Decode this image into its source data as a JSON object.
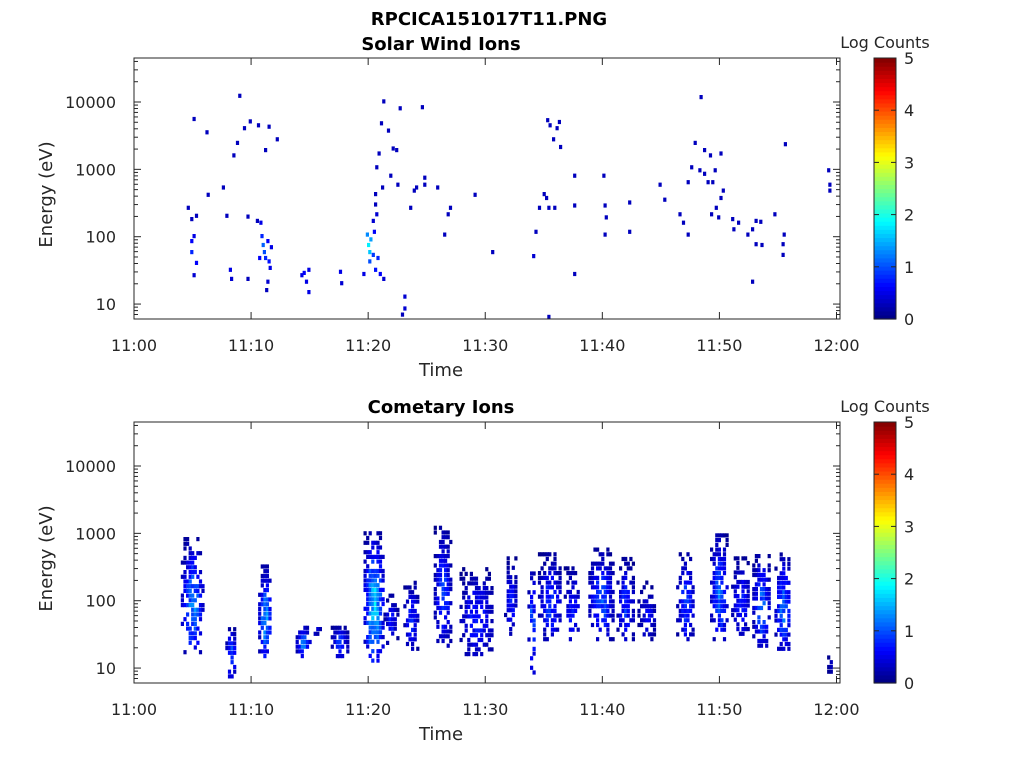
{
  "figure": {
    "title": "RPCICA151017T11.PNG"
  },
  "chart_data": [
    {
      "type": "heatmap",
      "title": "Solar Wind Ions",
      "xlabel": "Time",
      "ylabel": "Energy (eV)",
      "xticks": [
        "11:00",
        "11:10",
        "11:20",
        "11:30",
        "11:40",
        "11:50",
        "12:00"
      ],
      "xlim_minutes": [
        0,
        60.3
      ],
      "yscale": "log",
      "ylim": [
        6,
        45000
      ],
      "yticks": [
        "10",
        "100",
        "1000",
        "10000"
      ],
      "colorbar": {
        "label": "Log Counts",
        "ticks": [
          "0",
          "1",
          "2",
          "3",
          "4",
          "5"
        ],
        "range": [
          0,
          5
        ],
        "colormap": "jet"
      },
      "cells": [
        [
          4.5,
          250,
          0.3
        ],
        [
          4.8,
          170,
          0.3
        ],
        [
          5.0,
          5200,
          0.3
        ],
        [
          5.2,
          190,
          0.3
        ],
        [
          6.1,
          3300,
          0.3
        ],
        [
          6.2,
          390,
          0.3
        ],
        [
          7.5,
          500,
          0.3
        ],
        [
          7.8,
          190,
          0.3
        ],
        [
          8.4,
          1500,
          0.3
        ],
        [
          8.7,
          2300,
          0.3
        ],
        [
          8.9,
          11500,
          0.3
        ],
        [
          9.3,
          3800,
          0.3
        ],
        [
          9.8,
          4800,
          0.3
        ],
        [
          10.5,
          4200,
          0.3
        ],
        [
          11.1,
          1800,
          0.3
        ],
        [
          11.4,
          4000,
          0.3
        ],
        [
          12.1,
          2600,
          0.3
        ],
        [
          9.6,
          185,
          0.3
        ],
        [
          10.4,
          160,
          0.3
        ],
        [
          4.8,
          80,
          0.6
        ],
        [
          4.8,
          55,
          0.8
        ],
        [
          5.0,
          95,
          0.5
        ],
        [
          5.2,
          38,
          0.6
        ],
        [
          5.0,
          25,
          0.4
        ],
        [
          8.1,
          30,
          0.5
        ],
        [
          8.2,
          22,
          0.4
        ],
        [
          9.6,
          22,
          0.3
        ],
        [
          10.7,
          150,
          0.5
        ],
        [
          10.8,
          95,
          0.8
        ],
        [
          10.9,
          70,
          1.1
        ],
        [
          11.0,
          55,
          1.0
        ],
        [
          11.1,
          45,
          0.8
        ],
        [
          11.3,
          80,
          0.6
        ],
        [
          11.4,
          40,
          0.7
        ],
        [
          11.5,
          32,
          0.5
        ],
        [
          11.3,
          20,
          0.4
        ],
        [
          11.2,
          15,
          0.3
        ],
        [
          11.6,
          65,
          0.5
        ],
        [
          10.6,
          45,
          0.6
        ],
        [
          14.2,
          25,
          0.5
        ],
        [
          14.4,
          27,
          0.6
        ],
        [
          14.6,
          20,
          0.5
        ],
        [
          14.8,
          14,
          0.5
        ],
        [
          14.8,
          30,
          0.5
        ],
        [
          17.5,
          28,
          0.5
        ],
        [
          17.6,
          19,
          0.4
        ],
        [
          19.5,
          26,
          0.5
        ],
        [
          19.8,
          100,
          1.3
        ],
        [
          19.9,
          70,
          1.8
        ],
        [
          20.0,
          55,
          1.6
        ],
        [
          20.1,
          85,
          1.4
        ],
        [
          20.0,
          40,
          1.0
        ],
        [
          20.3,
          50,
          0.9
        ],
        [
          20.5,
          30,
          0.7
        ],
        [
          20.7,
          45,
          0.8
        ],
        [
          20.9,
          26,
          0.6
        ],
        [
          21.2,
          22,
          0.4
        ],
        [
          20.4,
          110,
          0.6
        ],
        [
          20.6,
          200,
          0.4
        ],
        [
          20.3,
          160,
          0.4
        ],
        [
          20.5,
          280,
          0.3
        ],
        [
          21.2,
          9500,
          0.3
        ],
        [
          21.0,
          4500,
          0.3
        ],
        [
          20.8,
          1600,
          0.3
        ],
        [
          20.6,
          1000,
          0.3
        ],
        [
          21.1,
          500,
          0.3
        ],
        [
          20.5,
          400,
          0.3
        ],
        [
          21.6,
          3500,
          0.3
        ],
        [
          22.0,
          1900,
          0.3
        ],
        [
          22.6,
          7500,
          0.3
        ],
        [
          22.3,
          1800,
          0.3
        ],
        [
          22.4,
          550,
          0.3
        ],
        [
          21.8,
          750,
          0.3
        ],
        [
          23.8,
          450,
          0.3
        ],
        [
          24.0,
          500,
          0.3
        ],
        [
          24.5,
          7800,
          0.3
        ],
        [
          24.7,
          700,
          0.3
        ],
        [
          24.7,
          550,
          0.3
        ],
        [
          25.8,
          500,
          0.3
        ],
        [
          26.7,
          200,
          0.3
        ],
        [
          26.9,
          250,
          0.3
        ],
        [
          26.4,
          100,
          0.3
        ],
        [
          23.5,
          250,
          0.3
        ],
        [
          23.0,
          12,
          0.4
        ],
        [
          23.0,
          8,
          0.4
        ],
        [
          22.8,
          6.5,
          0.3
        ],
        [
          29.0,
          390,
          0.3
        ],
        [
          30.5,
          55,
          0.3
        ],
        [
          35.2,
          5000,
          0.3
        ],
        [
          35.4,
          4200,
          0.3
        ],
        [
          36.0,
          3800,
          0.3
        ],
        [
          36.2,
          4700,
          0.3
        ],
        [
          35.7,
          2600,
          0.3
        ],
        [
          35.1,
          350,
          0.3
        ],
        [
          35.3,
          250,
          0.3
        ],
        [
          35.8,
          250,
          0.3
        ],
        [
          36.3,
          2000,
          0.3
        ],
        [
          37.5,
          750,
          0.3
        ],
        [
          37.5,
          270,
          0.3
        ],
        [
          37.5,
          26,
          0.3
        ],
        [
          40.0,
          750,
          0.3
        ],
        [
          40.1,
          270,
          0.3
        ],
        [
          40.2,
          180,
          0.3
        ],
        [
          40.1,
          100,
          0.3
        ],
        [
          42.2,
          300,
          0.3
        ],
        [
          42.2,
          110,
          0.3
        ],
        [
          34.2,
          110,
          0.3
        ],
        [
          34.5,
          250,
          0.3
        ],
        [
          34.9,
          400,
          0.3
        ],
        [
          34.0,
          48,
          0.4
        ],
        [
          35.3,
          6,
          0.3
        ],
        [
          44.8,
          550,
          0.3
        ],
        [
          45.2,
          330,
          0.3
        ],
        [
          46.5,
          200,
          0.3
        ],
        [
          46.8,
          150,
          0.3
        ],
        [
          47.2,
          100,
          0.3
        ],
        [
          47.8,
          2300,
          0.3
        ],
        [
          47.2,
          600,
          0.3
        ],
        [
          47.5,
          1000,
          0.3
        ],
        [
          48.2,
          900,
          0.3
        ],
        [
          48.6,
          800,
          0.3
        ],
        [
          48.9,
          600,
          0.3
        ],
        [
          49.1,
          1500,
          0.3
        ],
        [
          49.3,
          600,
          0.3
        ],
        [
          49.6,
          250,
          0.3
        ],
        [
          49.2,
          200,
          0.3
        ],
        [
          50.0,
          350,
          0.3
        ],
        [
          49.8,
          180,
          0.3
        ],
        [
          51.0,
          170,
          0.3
        ],
        [
          51.1,
          120,
          0.3
        ],
        [
          51.5,
          150,
          0.3
        ],
        [
          48.3,
          11000,
          0.3
        ],
        [
          48.6,
          1800,
          0.3
        ],
        [
          49.5,
          900,
          0.3
        ],
        [
          50.2,
          450,
          0.3
        ],
        [
          50.0,
          1600,
          0.3
        ],
        [
          52.3,
          100,
          0.3
        ],
        [
          52.7,
          120,
          0.3
        ],
        [
          53.0,
          160,
          0.3
        ],
        [
          53.0,
          72,
          0.3
        ],
        [
          53.5,
          70,
          0.3
        ],
        [
          53.4,
          155,
          0.3
        ],
        [
          54.6,
          200,
          0.3
        ],
        [
          55.4,
          100,
          0.3
        ],
        [
          55.3,
          72,
          0.3
        ],
        [
          55.3,
          50,
          0.3
        ],
        [
          55.5,
          2200,
          0.3
        ],
        [
          52.7,
          20,
          0.3
        ],
        [
          59.2,
          900,
          0.3
        ],
        [
          59.3,
          550,
          0.3
        ],
        [
          59.3,
          450,
          0.3
        ],
        [
          60.1,
          4800,
          0.3
        ]
      ]
    },
    {
      "type": "heatmap",
      "title": "Cometary Ions",
      "xlabel": "Time",
      "ylabel": "Energy (eV)",
      "xticks": [
        "11:00",
        "11:10",
        "11:20",
        "11:30",
        "11:40",
        "11:50",
        "12:00"
      ],
      "xlim_minutes": [
        0,
        60.3
      ],
      "yscale": "log",
      "ylim": [
        6,
        45000
      ],
      "yticks": [
        "10",
        "100",
        "1000",
        "10000"
      ],
      "colorbar": {
        "label": "Log Counts",
        "ticks": [
          "0",
          "1",
          "2",
          "3",
          "4",
          "5"
        ],
        "range": [
          0,
          5
        ],
        "colormap": "jet"
      },
      "clusters": [
        {
          "t": [
            4.0,
            5.8
          ],
          "e": [
            16,
            800
          ],
          "peak": 1.8,
          "density": 0.7
        },
        {
          "t": [
            7.8,
            8.6
          ],
          "e": [
            7,
            40
          ],
          "peak": 1.5,
          "density": 0.7
        },
        {
          "t": [
            10.6,
            11.6
          ],
          "e": [
            14,
            300
          ],
          "peak": 2.0,
          "density": 0.85
        },
        {
          "t": [
            13.8,
            14.9
          ],
          "e": [
            14,
            40
          ],
          "peak": 1.6,
          "density": 0.9
        },
        {
          "t": [
            14.9,
            15.9
          ],
          "e": [
            30,
            40
          ],
          "peak": 0.7,
          "density": 0.6
        },
        {
          "t": [
            16.8,
            18.2
          ],
          "e": [
            14,
            42
          ],
          "peak": 1.2,
          "density": 0.8
        },
        {
          "t": [
            19.6,
            21.2
          ],
          "e": [
            12,
            1000
          ],
          "peak": 2.4,
          "density": 0.85
        },
        {
          "t": [
            21.3,
            22.4
          ],
          "e": [
            22,
            120
          ],
          "peak": 1.0,
          "density": 0.6
        },
        {
          "t": [
            23.0,
            24.2
          ],
          "e": [
            18,
            200
          ],
          "peak": 1.1,
          "density": 0.6
        },
        {
          "t": [
            25.6,
            27.0
          ],
          "e": [
            20,
            1300
          ],
          "peak": 1.3,
          "density": 0.7
        },
        {
          "t": [
            27.8,
            30.6
          ],
          "e": [
            15,
            300
          ],
          "peak": 1.1,
          "density": 0.6
        },
        {
          "t": [
            31.6,
            32.6
          ],
          "e": [
            30,
            400
          ],
          "peak": 1.0,
          "density": 0.6
        },
        {
          "t": [
            33.6,
            34.2
          ],
          "e": [
            8,
            400
          ],
          "peak": 1.5,
          "density": 0.55
        },
        {
          "t": [
            34.5,
            36.4
          ],
          "e": [
            25,
            500
          ],
          "peak": 1.2,
          "density": 0.7
        },
        {
          "t": [
            36.7,
            38.0
          ],
          "e": [
            25,
            300
          ],
          "peak": 1.1,
          "density": 0.6
        },
        {
          "t": [
            38.8,
            40.8
          ],
          "e": [
            25,
            600
          ],
          "peak": 1.4,
          "density": 0.7
        },
        {
          "t": [
            41.2,
            42.6
          ],
          "e": [
            25,
            400
          ],
          "peak": 1.2,
          "density": 0.6
        },
        {
          "t": [
            43.0,
            44.5
          ],
          "e": [
            25,
            180
          ],
          "peak": 0.8,
          "density": 0.5
        },
        {
          "t": [
            46.3,
            47.8
          ],
          "e": [
            25,
            500
          ],
          "peak": 1.3,
          "density": 0.65
        },
        {
          "t": [
            49.2,
            50.6
          ],
          "e": [
            25,
            1000
          ],
          "peak": 1.6,
          "density": 0.75
        },
        {
          "t": [
            51.0,
            52.5
          ],
          "e": [
            30,
            400
          ],
          "peak": 1.1,
          "density": 0.6
        },
        {
          "t": [
            52.8,
            54.2
          ],
          "e": [
            20,
            500
          ],
          "peak": 1.6,
          "density": 0.7
        },
        {
          "t": [
            54.7,
            56.0
          ],
          "e": [
            18,
            500
          ],
          "peak": 1.6,
          "density": 0.7
        },
        {
          "t": [
            59.2,
            59.5
          ],
          "e": [
            7,
            16
          ],
          "peak": 0.5,
          "density": 0.9
        }
      ]
    }
  ]
}
